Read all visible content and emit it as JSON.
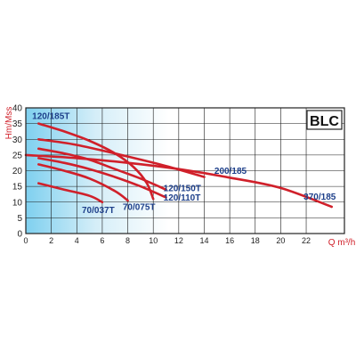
{
  "chart_data": {
    "type": "line",
    "title": "BLC",
    "xlabel": "Q m³/h",
    "ylabel": "Hm/Mss",
    "xlim": [
      0,
      25
    ],
    "ylim": [
      0,
      40
    ],
    "x_ticks": [
      0,
      2,
      4,
      6,
      8,
      10,
      12,
      14,
      16,
      18,
      20,
      22
    ],
    "y_ticks": [
      0,
      5,
      10,
      15,
      20,
      25,
      30,
      35,
      40
    ],
    "grid": true,
    "series": [
      {
        "name": "120/185T",
        "color": "#d0202a",
        "x": [
          1,
          3,
          5,
          7,
          8.5,
          9.5,
          10
        ],
        "y": [
          35,
          32.5,
          29.5,
          25.5,
          21,
          16,
          11
        ]
      },
      {
        "name": "200/185",
        "color": "#d0202a",
        "x": [
          1,
          4,
          8,
          11,
          14
        ],
        "y": [
          30,
          28.2,
          24.5,
          21.5,
          18
        ]
      },
      {
        "name": "120/150T",
        "color": "#d0202a",
        "x": [
          1,
          3,
          5,
          7,
          9,
          11
        ],
        "y": [
          27,
          25.5,
          23.5,
          20.5,
          17.5,
          14
        ]
      },
      {
        "name": "120/110T",
        "color": "#d0202a",
        "x": [
          1,
          3,
          5,
          7,
          9,
          11
        ],
        "y": [
          24,
          22.5,
          20.5,
          18,
          15,
          11.5
        ]
      },
      {
        "name": "70/075T",
        "color": "#d0202a",
        "x": [
          1,
          3,
          5,
          7,
          8
        ],
        "y": [
          22,
          20,
          17.5,
          13.5,
          10.5
        ]
      },
      {
        "name": "70/037T",
        "color": "#d0202a",
        "x": [
          1,
          3,
          5,
          6
        ],
        "y": [
          16,
          14,
          12,
          10
        ]
      },
      {
        "name": "370/185",
        "color": "#d0202a",
        "x": [
          0,
          4,
          8,
          12,
          16,
          20,
          24
        ],
        "y": [
          25,
          24,
          22.5,
          20.5,
          17.8,
          14.5,
          8.5
        ]
      }
    ],
    "annotations": [
      {
        "text": "120/185T",
        "x": 0.5,
        "y": 36.5
      },
      {
        "text": "200/185",
        "x": 14.8,
        "y": 19
      },
      {
        "text": "120/150T",
        "x": 10.8,
        "y": 13.5
      },
      {
        "text": "120/110T",
        "x": 10.8,
        "y": 10.5
      },
      {
        "text": "70/075T",
        "x": 7.6,
        "y": 7.5
      },
      {
        "text": "70/037T",
        "x": 4.4,
        "y": 6.5
      },
      {
        "text": "370/185",
        "x": 21.8,
        "y": 10.8
      }
    ]
  }
}
